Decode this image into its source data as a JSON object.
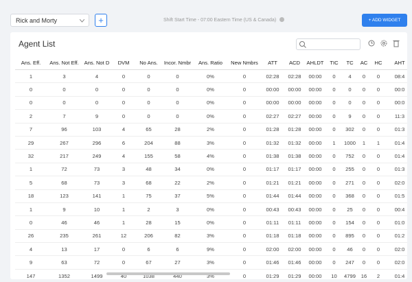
{
  "toolbar": {
    "team_select": "Rick and Morty",
    "add_button": "+",
    "shift_info": "Shift Start Time - 07:00 Eastern Time (US & Canada)",
    "add_widget": "+ ADD WIDGET"
  },
  "widget": {
    "title": "Agent List"
  },
  "table": {
    "columns": [
      "Ans. Eff.",
      "Ans. Not Eff.",
      "Ans. Not D",
      "DVM",
      "No Ans.",
      "Incor. Nmbr",
      "Ans. Ratio",
      "New Nmbrs",
      "ATT",
      "ACD",
      "AHLDT",
      "TIC",
      "TC",
      "AC",
      "HC",
      "AHT"
    ],
    "rows": [
      [
        "1",
        "3",
        "4",
        "0",
        "0",
        "0",
        "0%",
        "0",
        "02:28",
        "02:28",
        "00:00",
        "0",
        "4",
        "0",
        "0",
        "08:4"
      ],
      [
        "0",
        "0",
        "0",
        "0",
        "0",
        "0",
        "0%",
        "0",
        "00:00",
        "00:00",
        "00:00",
        "0",
        "0",
        "0",
        "0",
        "00:0"
      ],
      [
        "0",
        "0",
        "0",
        "0",
        "0",
        "0",
        "0%",
        "0",
        "00:00",
        "00:00",
        "00:00",
        "0",
        "0",
        "0",
        "0",
        "00:0"
      ],
      [
        "2",
        "7",
        "9",
        "0",
        "0",
        "0",
        "0%",
        "0",
        "02:27",
        "02:27",
        "00:00",
        "0",
        "9",
        "0",
        "0",
        "11:3"
      ],
      [
        "7",
        "96",
        "103",
        "4",
        "65",
        "28",
        "2%",
        "0",
        "01:28",
        "01:28",
        "00:00",
        "0",
        "302",
        "0",
        "0",
        "01:3"
      ],
      [
        "29",
        "267",
        "296",
        "6",
        "204",
        "88",
        "3%",
        "0",
        "01:32",
        "01:32",
        "00:00",
        "1",
        "1000",
        "1",
        "1",
        "01:4"
      ],
      [
        "32",
        "217",
        "249",
        "4",
        "155",
        "58",
        "4%",
        "0",
        "01:38",
        "01:38",
        "00:00",
        "0",
        "752",
        "0",
        "0",
        "01:4"
      ],
      [
        "1",
        "72",
        "73",
        "3",
        "48",
        "34",
        "0%",
        "0",
        "01:17",
        "01:17",
        "00:00",
        "0",
        "255",
        "0",
        "0",
        "01:3"
      ],
      [
        "5",
        "68",
        "73",
        "3",
        "68",
        "22",
        "2%",
        "0",
        "01:21",
        "01:21",
        "00:00",
        "0",
        "271",
        "0",
        "0",
        "02:0"
      ],
      [
        "18",
        "123",
        "141",
        "1",
        "75",
        "37",
        "5%",
        "0",
        "01:44",
        "01:44",
        "00:00",
        "0",
        "368",
        "0",
        "0",
        "01:5"
      ],
      [
        "1",
        "9",
        "10",
        "1",
        "2",
        "3",
        "0%",
        "0",
        "00:43",
        "00:43",
        "00:00",
        "0",
        "25",
        "0",
        "0",
        "00:4"
      ],
      [
        "0",
        "46",
        "46",
        "1",
        "28",
        "15",
        "0%",
        "0",
        "01:11",
        "01:11",
        "00:00",
        "0",
        "154",
        "0",
        "0",
        "01:0"
      ],
      [
        "26",
        "235",
        "261",
        "12",
        "206",
        "82",
        "3%",
        "0",
        "01:18",
        "01:18",
        "00:00",
        "0",
        "895",
        "0",
        "0",
        "01:2"
      ],
      [
        "4",
        "13",
        "17",
        "0",
        "6",
        "6",
        "9%",
        "0",
        "02:00",
        "02:00",
        "00:00",
        "0",
        "46",
        "0",
        "0",
        "02:0"
      ],
      [
        "9",
        "63",
        "72",
        "0",
        "67",
        "27",
        "3%",
        "0",
        "01:46",
        "01:46",
        "00:00",
        "0",
        "247",
        "0",
        "0",
        "02:0"
      ],
      [
        "147",
        "1352",
        "1499",
        "40",
        "1038",
        "440",
        "3%",
        "0",
        "01:29",
        "01:29",
        "00:00",
        "10",
        "4799",
        "16",
        "2",
        "01:4"
      ]
    ]
  }
}
